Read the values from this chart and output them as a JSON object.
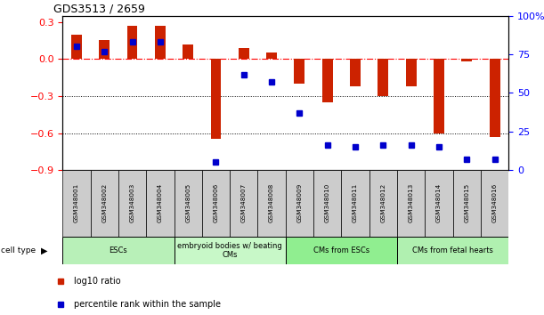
{
  "title": "GDS3513 / 2659",
  "samples": [
    "GSM348001",
    "GSM348002",
    "GSM348003",
    "GSM348004",
    "GSM348005",
    "GSM348006",
    "GSM348007",
    "GSM348008",
    "GSM348009",
    "GSM348010",
    "GSM348011",
    "GSM348012",
    "GSM348013",
    "GSM348014",
    "GSM348015",
    "GSM348016"
  ],
  "log10_ratio": [
    0.2,
    0.15,
    0.27,
    0.27,
    0.12,
    -0.65,
    0.09,
    0.05,
    -0.2,
    -0.35,
    -0.22,
    -0.3,
    -0.22,
    -0.6,
    -0.02,
    -0.63
  ],
  "percentile_rank": [
    80,
    77,
    83,
    83,
    null,
    5,
    62,
    57,
    37,
    16,
    15,
    16,
    16,
    15,
    7,
    7
  ],
  "cell_types": [
    {
      "label": "ESCs",
      "start": 0,
      "end": 4,
      "color": "#b8f0b8"
    },
    {
      "label": "embryoid bodies w/ beating\nCMs",
      "start": 4,
      "end": 8,
      "color": "#c8f8c8"
    },
    {
      "label": "CMs from ESCs",
      "start": 8,
      "end": 12,
      "color": "#90ee90"
    },
    {
      "label": "CMs from fetal hearts",
      "start": 12,
      "end": 16,
      "color": "#b0f0b0"
    }
  ],
  "bar_color": "#CC2200",
  "dot_color": "#0000CC",
  "ylim_left": [
    -0.9,
    0.35
  ],
  "ylim_right": [
    0,
    100
  ],
  "yticks_left": [
    -0.9,
    -0.6,
    -0.3,
    0.0,
    0.3
  ],
  "yticks_right": [
    0,
    25,
    50,
    75,
    100
  ],
  "hline_y": 0.0,
  "dotted_hlines": [
    -0.3,
    -0.6
  ],
  "legend_items": [
    {
      "label": "log10 ratio",
      "color": "#CC2200"
    },
    {
      "label": "percentile rank within the sample",
      "color": "#0000CC"
    }
  ],
  "cell_type_label": "cell type",
  "figsize": [
    6.11,
    3.54
  ],
  "dpi": 100
}
